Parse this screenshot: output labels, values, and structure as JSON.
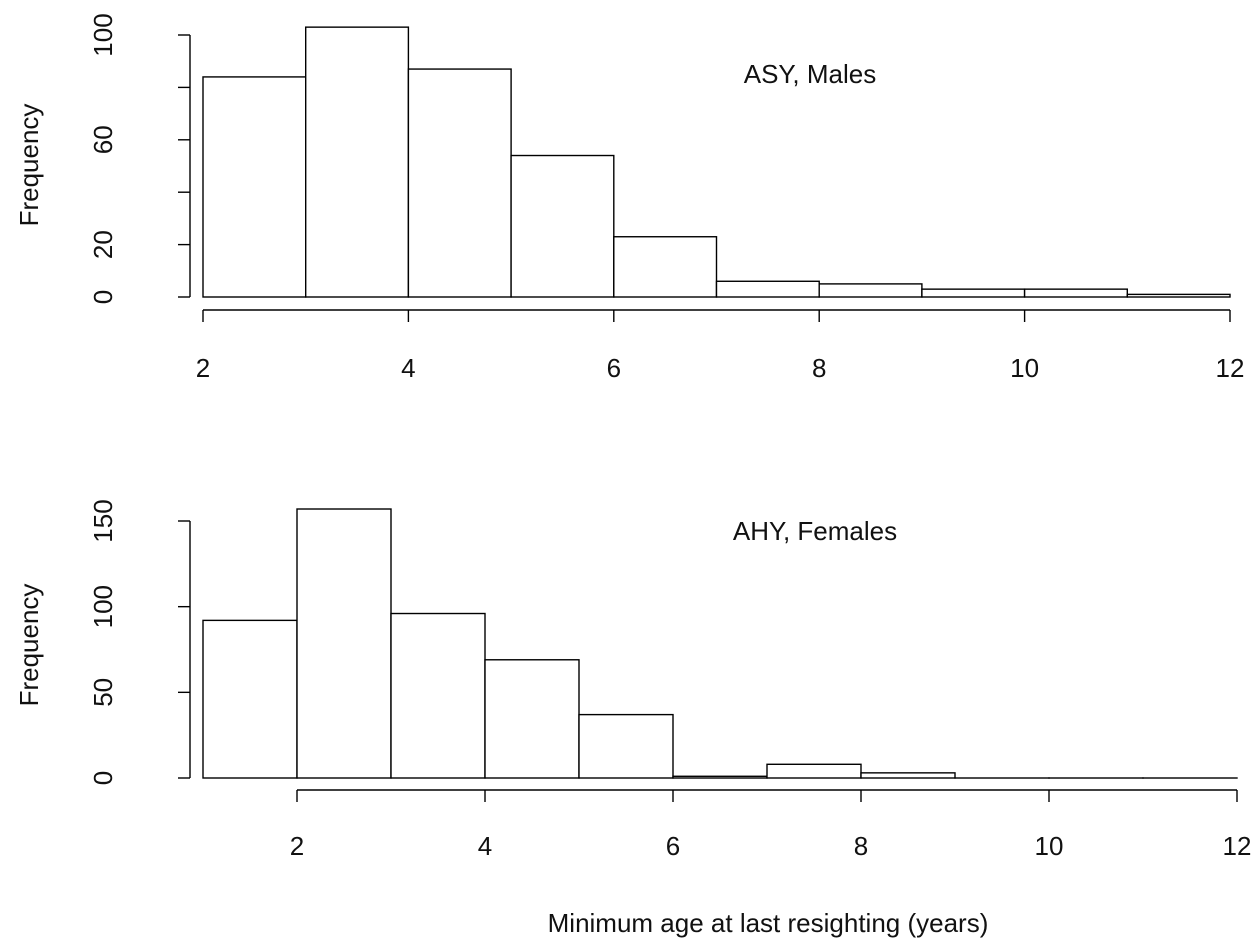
{
  "chart_data": [
    {
      "type": "bar",
      "title": "",
      "annotation": "ASY, Males",
      "xlabel": "",
      "ylabel": "Frequency",
      "bins": [
        [
          2,
          3
        ],
        [
          3,
          4
        ],
        [
          4,
          5
        ],
        [
          5,
          6
        ],
        [
          6,
          7
        ],
        [
          7,
          8
        ],
        [
          8,
          9
        ],
        [
          9,
          10
        ],
        [
          10,
          11
        ],
        [
          11,
          12
        ]
      ],
      "values": [
        84,
        103,
        87,
        54,
        23,
        6,
        5,
        3,
        3,
        1
      ],
      "xlim": [
        2,
        12
      ],
      "ylim": [
        0,
        100
      ],
      "xticks": [
        2,
        4,
        6,
        8,
        10,
        12
      ],
      "xtick_labels": [
        "2",
        "4",
        "6",
        "8",
        "10",
        "12"
      ],
      "yticks": [
        0,
        20,
        40,
        60,
        80,
        100
      ],
      "ytick_labels": [
        "0",
        "20",
        "",
        "60",
        "",
        "100"
      ],
      "grid": false
    },
    {
      "type": "bar",
      "title": "",
      "annotation": "AHY, Females",
      "xlabel": "Minimum age at last resighting (years)",
      "ylabel": "Frequency",
      "bins": [
        [
          1,
          2
        ],
        [
          2,
          3
        ],
        [
          3,
          4
        ],
        [
          4,
          5
        ],
        [
          5,
          6
        ],
        [
          6,
          7
        ],
        [
          7,
          8
        ],
        [
          8,
          9
        ],
        [
          9,
          10
        ],
        [
          10,
          11
        ],
        [
          11,
          12
        ]
      ],
      "values": [
        92,
        157,
        96,
        69,
        37,
        1,
        8,
        3,
        0,
        0,
        0
      ],
      "xlim": [
        2,
        12
      ],
      "ylim": [
        0,
        150
      ],
      "xticks": [
        2,
        4,
        6,
        8,
        10,
        12
      ],
      "xtick_labels": [
        "2",
        "4",
        "6",
        "8",
        "10",
        "12"
      ],
      "yticks": [
        0,
        50,
        100,
        150
      ],
      "ytick_labels": [
        "0",
        "50",
        "100",
        "150"
      ],
      "grid": false
    }
  ]
}
